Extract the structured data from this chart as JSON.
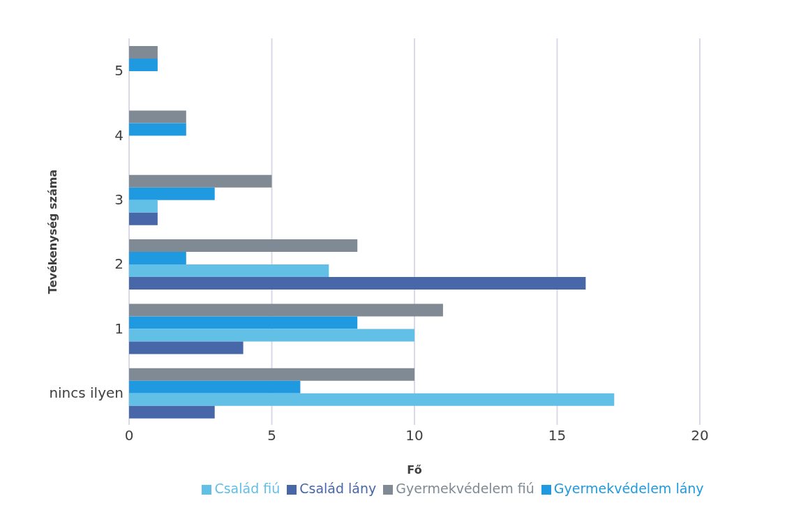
{
  "chart_data": {
    "type": "bar",
    "orientation": "horizontal",
    "xlabel": "Fő",
    "ylabel": "Tevékenység száma",
    "categories": [
      "5",
      "4",
      "3",
      "2",
      "1",
      "nincs ilyen"
    ],
    "series": [
      {
        "name": "Gyermekvédelem fiú",
        "color": "#7f8a94",
        "values": [
          1,
          2,
          5,
          8,
          11,
          10
        ]
      },
      {
        "name": "Gyermekvédelem lány",
        "color": "#1f9ae0",
        "values": [
          1,
          2,
          3,
          2,
          8,
          6
        ]
      },
      {
        "name": "Család fiú",
        "color": "#62bfe6",
        "values": [
          null,
          null,
          1,
          7,
          10,
          17
        ]
      },
      {
        "name": "Család lány",
        "color": "#4767a8",
        "values": [
          null,
          null,
          1,
          16,
          4,
          3
        ]
      }
    ],
    "xlim": [
      0,
      20
    ],
    "xticks": [
      0,
      5,
      10,
      15,
      20
    ],
    "grid": "x",
    "legend": "bottom"
  }
}
